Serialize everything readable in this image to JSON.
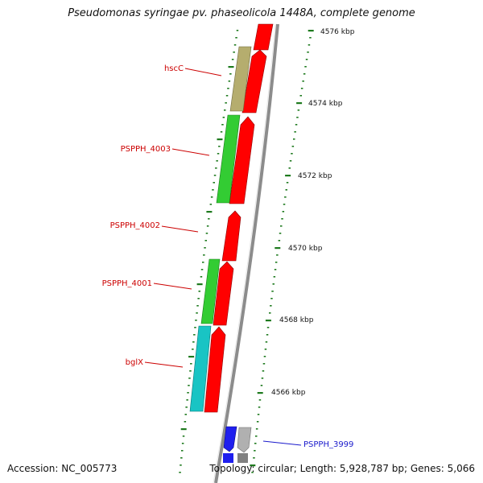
{
  "title": "Pseudomonas syringae pv. phaseolicola 1448A, complete genome",
  "accession": "Accession: NC_005773",
  "footer": "Topology: circular; Length: 5,928,787 bp; Genes: 5,066",
  "colors": {
    "forward_strand": "#ff0000",
    "backbone": "#8c8c8c",
    "label_red": "#cc0000",
    "label_blue": "#1a1acc",
    "gene_hscC": "#b5ad6e",
    "gene_green": "#33cc33",
    "gene_cyan": "#19c4c4",
    "gene_blue": "#1f1fee",
    "gene_gray": "#b0b0b0",
    "tick_green": "#1e7a1e"
  },
  "scale": {
    "unit": "kbp",
    "labels": [
      "4576 kbp",
      "4574 kbp",
      "4572 kbp",
      "4570 kbp",
      "4568 kbp",
      "4566 kbp"
    ]
  },
  "genes": [
    {
      "name": "hscC",
      "label_color": "red",
      "color_key": "gene_hscC"
    },
    {
      "name": "PSPPH_4003",
      "label_color": "red",
      "color_key": "gene_green"
    },
    {
      "name": "PSPPH_4002",
      "label_color": "red",
      "color_key": "forward_strand"
    },
    {
      "name": "PSPPH_4001",
      "label_color": "red",
      "color_key": "gene_green"
    },
    {
      "name": "bglX",
      "label_color": "red",
      "color_key": "gene_cyan"
    },
    {
      "name": "PSPPH_3999",
      "label_color": "blue",
      "color_key": "gene_blue"
    }
  ]
}
